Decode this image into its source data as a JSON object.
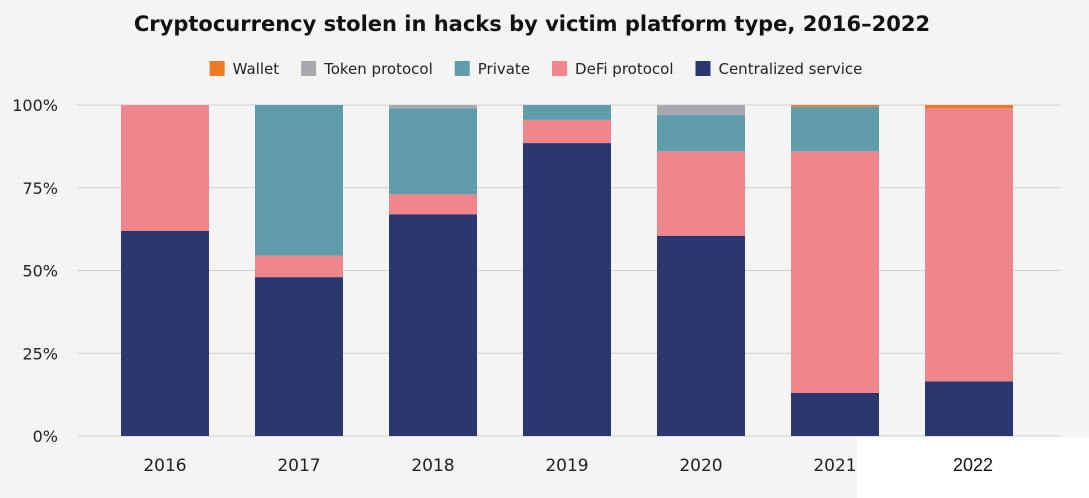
{
  "chart_data": {
    "type": "bar",
    "stacked": true,
    "title": "Cryptocurrency stolen in hacks by victim platform type, 2016–2022",
    "xlabel": "",
    "ylabel": "",
    "ylim": [
      0,
      100
    ],
    "y_ticks": [
      "0%",
      "25%",
      "50%",
      "75%",
      "100%"
    ],
    "y_tick_values": [
      0,
      25,
      50,
      75,
      100
    ],
    "legend_position": "top",
    "grid": true,
    "categories": [
      "2016",
      "2017",
      "2018",
      "2019",
      "2020",
      "2021",
      "2022"
    ],
    "series": [
      {
        "name": "Centralized service",
        "color": "#2b3870",
        "values": [
          62,
          48,
          67,
          88.5,
          60.5,
          13,
          16.5
        ]
      },
      {
        "name": "DeFi protocol",
        "color": "#f0868c",
        "values": [
          38,
          6.5,
          6,
          7,
          25.5,
          73,
          82.5
        ]
      },
      {
        "name": "Private",
        "color": "#5f9dab",
        "values": [
          0,
          45.5,
          26,
          4.5,
          11,
          13.5,
          0
        ]
      },
      {
        "name": "Token protocol",
        "color": "#a7a9ad",
        "values": [
          0,
          0,
          1,
          0,
          3,
          0,
          0
        ]
      },
      {
        "name": "Wallet",
        "color": "#ef7a22",
        "values": [
          0,
          0,
          0,
          0,
          0,
          0.5,
          1
        ]
      }
    ],
    "legend_order": [
      "Wallet",
      "Token protocol",
      "Private",
      "DeFi protocol",
      "Centralized service"
    ]
  }
}
